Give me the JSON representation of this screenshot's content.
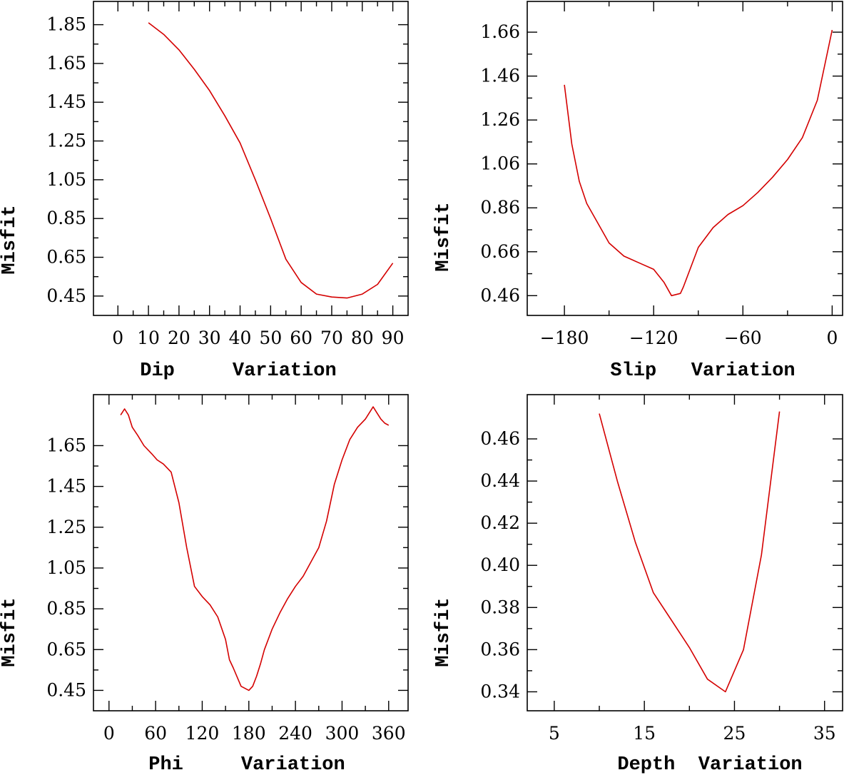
{
  "chart_data": [
    {
      "type": "line",
      "xlabel": "Dip     Variation",
      "ylabel": "Misfit",
      "xlim": [
        -8,
        95
      ],
      "ylim": [
        0.35,
        1.97
      ],
      "xticks": [
        0,
        10,
        20,
        30,
        40,
        50,
        60,
        70,
        80,
        90
      ],
      "xtick_labels": [
        "0",
        "10",
        "20",
        "30",
        "40",
        "50",
        "60",
        "70",
        "80",
        "90"
      ],
      "yticks": [
        0.45,
        0.65,
        0.85,
        1.05,
        1.25,
        1.45,
        1.65,
        1.85
      ],
      "ytick_labels": [
        "0.45",
        "0.65",
        "0.85",
        "1.05",
        "1.25",
        "1.45",
        "1.65",
        "1.85"
      ],
      "series": [
        {
          "name": "misfit",
          "color": "#d40000",
          "x": [
            10,
            15,
            20,
            25,
            30,
            35,
            40,
            45,
            50,
            55,
            60,
            65,
            70,
            75,
            80,
            85,
            90
          ],
          "y": [
            1.86,
            1.8,
            1.72,
            1.62,
            1.51,
            1.38,
            1.24,
            1.05,
            0.85,
            0.64,
            0.52,
            0.46,
            0.445,
            0.44,
            0.46,
            0.51,
            0.62
          ]
        }
      ]
    },
    {
      "type": "line",
      "xlabel": "Slip   Variation",
      "ylabel": "Misfit",
      "xlim": [
        -205,
        7
      ],
      "ylim": [
        0.37,
        1.8
      ],
      "xticks": [
        -180,
        -120,
        -60,
        0
      ],
      "xtick_labels": [
        "−180",
        "−120",
        "−60",
        "0"
      ],
      "yticks": [
        0.46,
        0.66,
        0.86,
        1.06,
        1.26,
        1.46,
        1.66
      ],
      "ytick_labels": [
        "0.46",
        "0.66",
        "0.86",
        "1.06",
        "1.26",
        "1.46",
        "1.66"
      ],
      "series": [
        {
          "name": "misfit",
          "color": "#d40000",
          "x": [
            -180,
            -175,
            -170,
            -165,
            -160,
            -150,
            -140,
            -130,
            -120,
            -113,
            -108,
            -102,
            -100,
            -90,
            -80,
            -70,
            -60,
            -50,
            -40,
            -30,
            -20,
            -10,
            0
          ],
          "y": [
            1.42,
            1.15,
            0.98,
            0.88,
            0.82,
            0.7,
            0.64,
            0.61,
            0.58,
            0.52,
            0.46,
            0.47,
            0.5,
            0.68,
            0.77,
            0.83,
            0.87,
            0.93,
            1.0,
            1.08,
            1.18,
            1.35,
            1.67
          ]
        }
      ]
    },
    {
      "type": "line",
      "xlabel": "Phi     Variation",
      "ylabel": "Misfit",
      "xlim": [
        -20,
        385
      ],
      "ylim": [
        0.35,
        1.9
      ],
      "xticks": [
        0,
        60,
        120,
        180,
        240,
        300,
        360
      ],
      "xtick_labels": [
        "0",
        "60",
        "120",
        "180",
        "240",
        "300",
        "360"
      ],
      "yticks": [
        0.45,
        0.65,
        0.85,
        1.05,
        1.25,
        1.45,
        1.65
      ],
      "ytick_labels": [
        "0.45",
        "0.65",
        "0.85",
        "1.05",
        "1.25",
        "1.45",
        "1.65"
      ],
      "series": [
        {
          "name": "misfit",
          "color": "#d40000",
          "x": [
            15,
            20,
            25,
            30,
            37,
            45,
            55,
            62,
            70,
            80,
            90,
            100,
            110,
            120,
            130,
            140,
            150,
            155,
            160,
            170,
            180,
            185,
            190,
            195,
            200,
            210,
            220,
            230,
            240,
            250,
            260,
            270,
            280,
            290,
            300,
            310,
            320,
            330,
            340,
            345,
            350,
            355,
            360
          ],
          "y": [
            1.8,
            1.83,
            1.8,
            1.74,
            1.7,
            1.65,
            1.61,
            1.58,
            1.56,
            1.52,
            1.37,
            1.15,
            0.96,
            0.91,
            0.87,
            0.81,
            0.7,
            0.6,
            0.56,
            0.47,
            0.45,
            0.47,
            0.52,
            0.58,
            0.65,
            0.75,
            0.83,
            0.9,
            0.96,
            1.01,
            1.08,
            1.15,
            1.28,
            1.46,
            1.58,
            1.68,
            1.74,
            1.78,
            1.84,
            1.81,
            1.78,
            1.76,
            1.75
          ]
        }
      ]
    },
    {
      "type": "line",
      "xlabel": "Depth  Variation",
      "ylabel": "Misfit",
      "xlim": [
        2,
        37
      ],
      "ylim": [
        0.331,
        0.481
      ],
      "xticks": [
        5,
        15,
        25,
        35
      ],
      "xtick_labels": [
        "5",
        "15",
        "25",
        "35"
      ],
      "yticks": [
        0.34,
        0.36,
        0.38,
        0.4,
        0.42,
        0.44,
        0.46
      ],
      "ytick_labels": [
        "0.34",
        "0.36",
        "0.38",
        "0.40",
        "0.42",
        "0.44",
        "0.46"
      ],
      "series": [
        {
          "name": "misfit",
          "color": "#d40000",
          "x": [
            10,
            12,
            14,
            16,
            18,
            20,
            22,
            24,
            26,
            28,
            30
          ],
          "y": [
            0.472,
            0.44,
            0.411,
            0.387,
            0.374,
            0.361,
            0.346,
            0.34,
            0.36,
            0.405,
            0.473
          ]
        }
      ]
    }
  ]
}
